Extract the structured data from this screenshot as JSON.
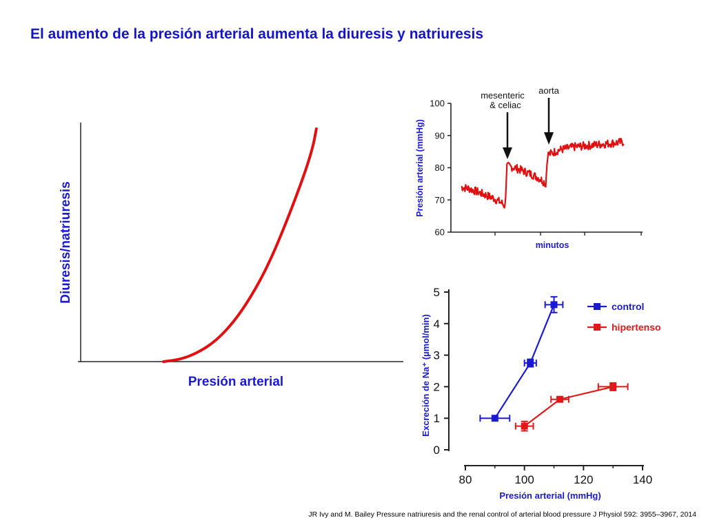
{
  "slide": {
    "title": "El aumento de la presión arterial aumenta la diuresis y natriuresis",
    "citation": "JR Ivy and M. Bailey Pressure natriuresis and the renal control of arterial blood pressure J Physiol 592: 3955–3967, 2014"
  },
  "colors": {
    "title": "#1515c8",
    "curve": "#e01010",
    "control": "#1a1ad0",
    "hipertenso": "#e01818",
    "axis_label": "#1a1ad0"
  },
  "chart_data": [
    {
      "type": "line",
      "xlabel": "Presión arterial",
      "ylabel": "Diuresis/natriuresis",
      "description_curve": "schematic exponential rise",
      "series": [
        {
          "values": [
            [
              0,
              0
            ],
            [
              0.1,
              0.01
            ],
            [
              0.2,
              0.04
            ],
            [
              0.3,
              0.09
            ],
            [
              0.4,
              0.17
            ],
            [
              0.5,
              0.28
            ],
            [
              0.6,
              0.42
            ],
            [
              0.7,
              0.6
            ],
            [
              0.8,
              0.8
            ],
            [
              0.85,
              0.92
            ],
            [
              0.87,
              1.0
            ]
          ]
        }
      ]
    },
    {
      "type": "line",
      "xlabel": "minutos",
      "ylabel": "Presión arterial (mmHg)",
      "ylim": [
        60,
        100
      ],
      "yticks": [
        60,
        70,
        80,
        90,
        100
      ],
      "annotations": [
        "mesenteric\n& celiac",
        "aorta"
      ],
      "series": [
        {
          "values": [
            [
              0,
              74
            ],
            [
              0.05,
              73.5
            ],
            [
              0.1,
              72.5
            ],
            [
              0.15,
              71.5
            ],
            [
              0.2,
              70.5
            ],
            [
              0.25,
              69
            ],
            [
              0.27,
              68
            ],
            [
              0.28,
              80.5
            ],
            [
              0.33,
              80
            ],
            [
              0.38,
              79
            ],
            [
              0.43,
              78
            ],
            [
              0.47,
              77
            ],
            [
              0.5,
              76
            ],
            [
              0.52,
              75
            ],
            [
              0.53,
              84
            ],
            [
              0.6,
              85.5
            ],
            [
              0.7,
              86.5
            ],
            [
              0.8,
              87
            ],
            [
              0.9,
              87.5
            ],
            [
              1.0,
              88
            ]
          ]
        }
      ]
    },
    {
      "type": "line",
      "xlabel": "Presión arterial (mmHg)",
      "ylabel": "Excreción de Na⁺ (µmol/min)",
      "xlim": [
        80,
        140
      ],
      "ylim": [
        0,
        5
      ],
      "xticks": [
        80,
        100,
        120,
        140
      ],
      "yticks": [
        0,
        1,
        2,
        3,
        4,
        5
      ],
      "legend": "top-right",
      "series": [
        {
          "name": "control",
          "x": [
            90,
            102,
            110
          ],
          "y": [
            1.0,
            2.75,
            4.6
          ],
          "xerr": [
            5,
            2,
            3
          ],
          "yerr": [
            0,
            0.12,
            0.25
          ]
        },
        {
          "name": "hipertenso",
          "x": [
            100,
            112,
            130
          ],
          "y": [
            0.75,
            1.6,
            2.0
          ],
          "xerr": [
            3,
            3,
            5
          ],
          "yerr": [
            0.15,
            0.05,
            0.12
          ]
        }
      ]
    }
  ]
}
